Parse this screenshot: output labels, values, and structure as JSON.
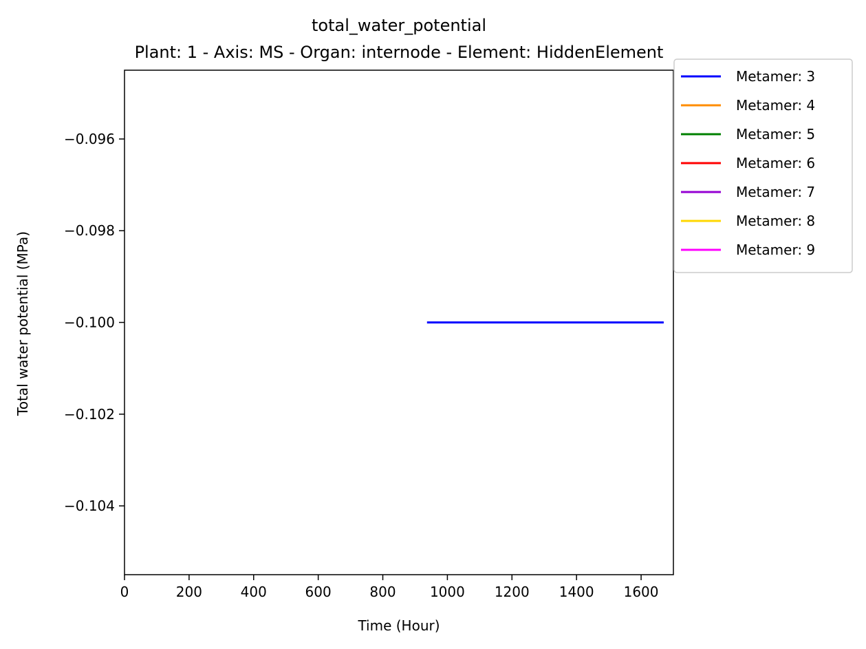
{
  "chart_data": {
    "type": "line",
    "title": "total_water_potential",
    "subtitle": "Plant: 1 - Axis: MS - Organ: internode - Element: HiddenElement",
    "xlabel": "Time (Hour)",
    "ylabel": "Total water potential (MPa)",
    "xlim": [
      0,
      1700
    ],
    "ylim": [
      -0.1055,
      -0.0945
    ],
    "xticks": [
      0,
      200,
      400,
      600,
      800,
      1000,
      1200,
      1400,
      1600
    ],
    "xtick_labels": [
      "0",
      "200",
      "400",
      "600",
      "800",
      "1000",
      "1200",
      "1400",
      "1600"
    ],
    "yticks": [
      -0.096,
      -0.098,
      -0.1,
      -0.102,
      -0.104
    ],
    "ytick_labels": [
      "−0.096",
      "−0.098",
      "−0.100",
      "−0.102",
      "−0.104"
    ],
    "grid": false,
    "legend_position": "outside-top-right",
    "series": [
      {
        "name": "Metamer: 3",
        "color": "#0000ff",
        "x": [
          937,
          1670
        ],
        "y": [
          -0.1,
          -0.1
        ]
      },
      {
        "name": "Metamer: 4",
        "color": "#ff8c00",
        "x": [],
        "y": []
      },
      {
        "name": "Metamer: 5",
        "color": "#008000",
        "x": [],
        "y": []
      },
      {
        "name": "Metamer: 6",
        "color": "#ff0000",
        "x": [],
        "y": []
      },
      {
        "name": "Metamer: 7",
        "color": "#9400d3",
        "x": [],
        "y": []
      },
      {
        "name": "Metamer: 8",
        "color": "#ffd700",
        "x": [],
        "y": []
      },
      {
        "name": "Metamer: 9",
        "color": "#ff00ff",
        "x": [],
        "y": []
      }
    ]
  }
}
